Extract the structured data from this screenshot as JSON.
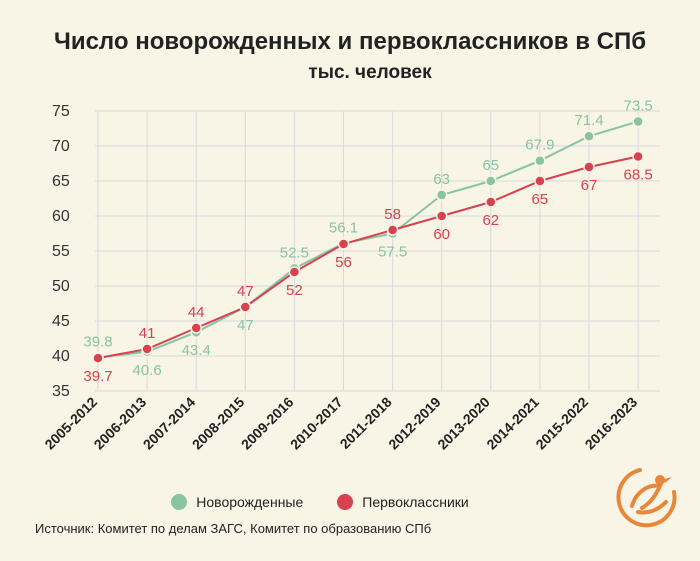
{
  "header": {
    "title": "Число новорожденных и первоклассников в СПб",
    "subtitle": "тыс. человек"
  },
  "legend": {
    "newborns": "Новорожденные",
    "first_graders": "Первоклассники"
  },
  "source": "Источник: Комитет по делам ЗАГС, Комитет по образованию СПб",
  "colors": {
    "newborns": "#88c4a1",
    "first_graders": "#d8414e",
    "grid": "#d9d9d9",
    "logo": "#e8873a"
  },
  "chart_data": {
    "type": "line",
    "title": "Число новорожденных и первоклассников в СПб",
    "subtitle": "тыс. человек",
    "xlabel": "",
    "ylabel": "",
    "ylim": [
      35,
      75
    ],
    "yticks": [
      35,
      40,
      45,
      50,
      55,
      60,
      65,
      70,
      75
    ],
    "categories": [
      "2005-2012",
      "2006-2013",
      "2007-2014",
      "2008-2015",
      "2009-2016",
      "2010-2017",
      "2011-2018",
      "2012-2019",
      "2013-2020",
      "2014-2021",
      "2015-2022",
      "2016-2023"
    ],
    "series": [
      {
        "name": "Новорожденные",
        "values": [
          39.8,
          40.6,
          43.4,
          47,
          52.5,
          56.1,
          57.5,
          63,
          65,
          67.9,
          71.4,
          73.5
        ],
        "labels": [
          "39.8",
          "40.6",
          "43.4",
          "47",
          "52.5",
          "56.1",
          "57.5",
          "63",
          "65",
          "67.9",
          "71.4",
          "73.5"
        ]
      },
      {
        "name": "Первоклассники",
        "values": [
          39.7,
          41,
          44,
          47,
          52,
          56,
          58,
          60,
          62,
          65,
          67,
          68.5
        ],
        "labels": [
          "39.7",
          "41",
          "44",
          "47",
          "52",
          "56",
          "58",
          "60",
          "62",
          "65",
          "67",
          "68.5"
        ]
      }
    ],
    "legend_position": "bottom-center",
    "grid": true
  }
}
